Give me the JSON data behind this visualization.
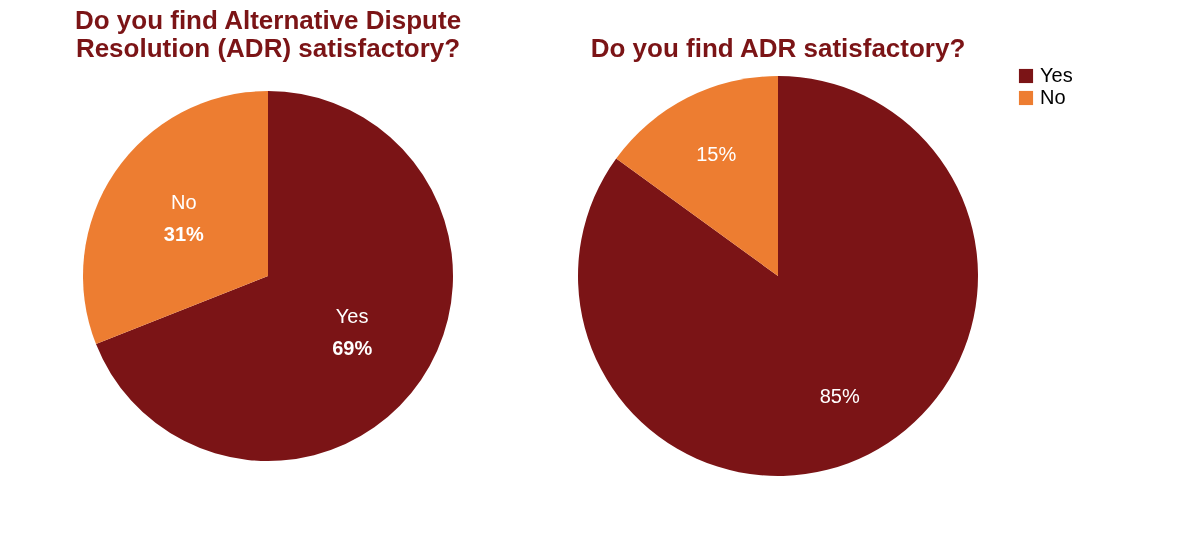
{
  "chart_data": [
    {
      "type": "pie",
      "title": "Do you find Alternative Dispute Resolution (ADR) satisfactory?",
      "categories": [
        "Yes",
        "No"
      ],
      "values": [
        69,
        31
      ],
      "colors": [
        "#7b1416",
        "#ed7d31"
      ],
      "value_labels": [
        "69%",
        "31%"
      ],
      "legend": false
    },
    {
      "type": "pie",
      "title": "Do you find ADR satisfactory?",
      "categories": [
        "Yes",
        "No"
      ],
      "values": [
        85,
        15
      ],
      "colors": [
        "#7b1416",
        "#ed7d31"
      ],
      "value_labels": [
        "85%",
        "15%"
      ],
      "legend": "right"
    }
  ]
}
